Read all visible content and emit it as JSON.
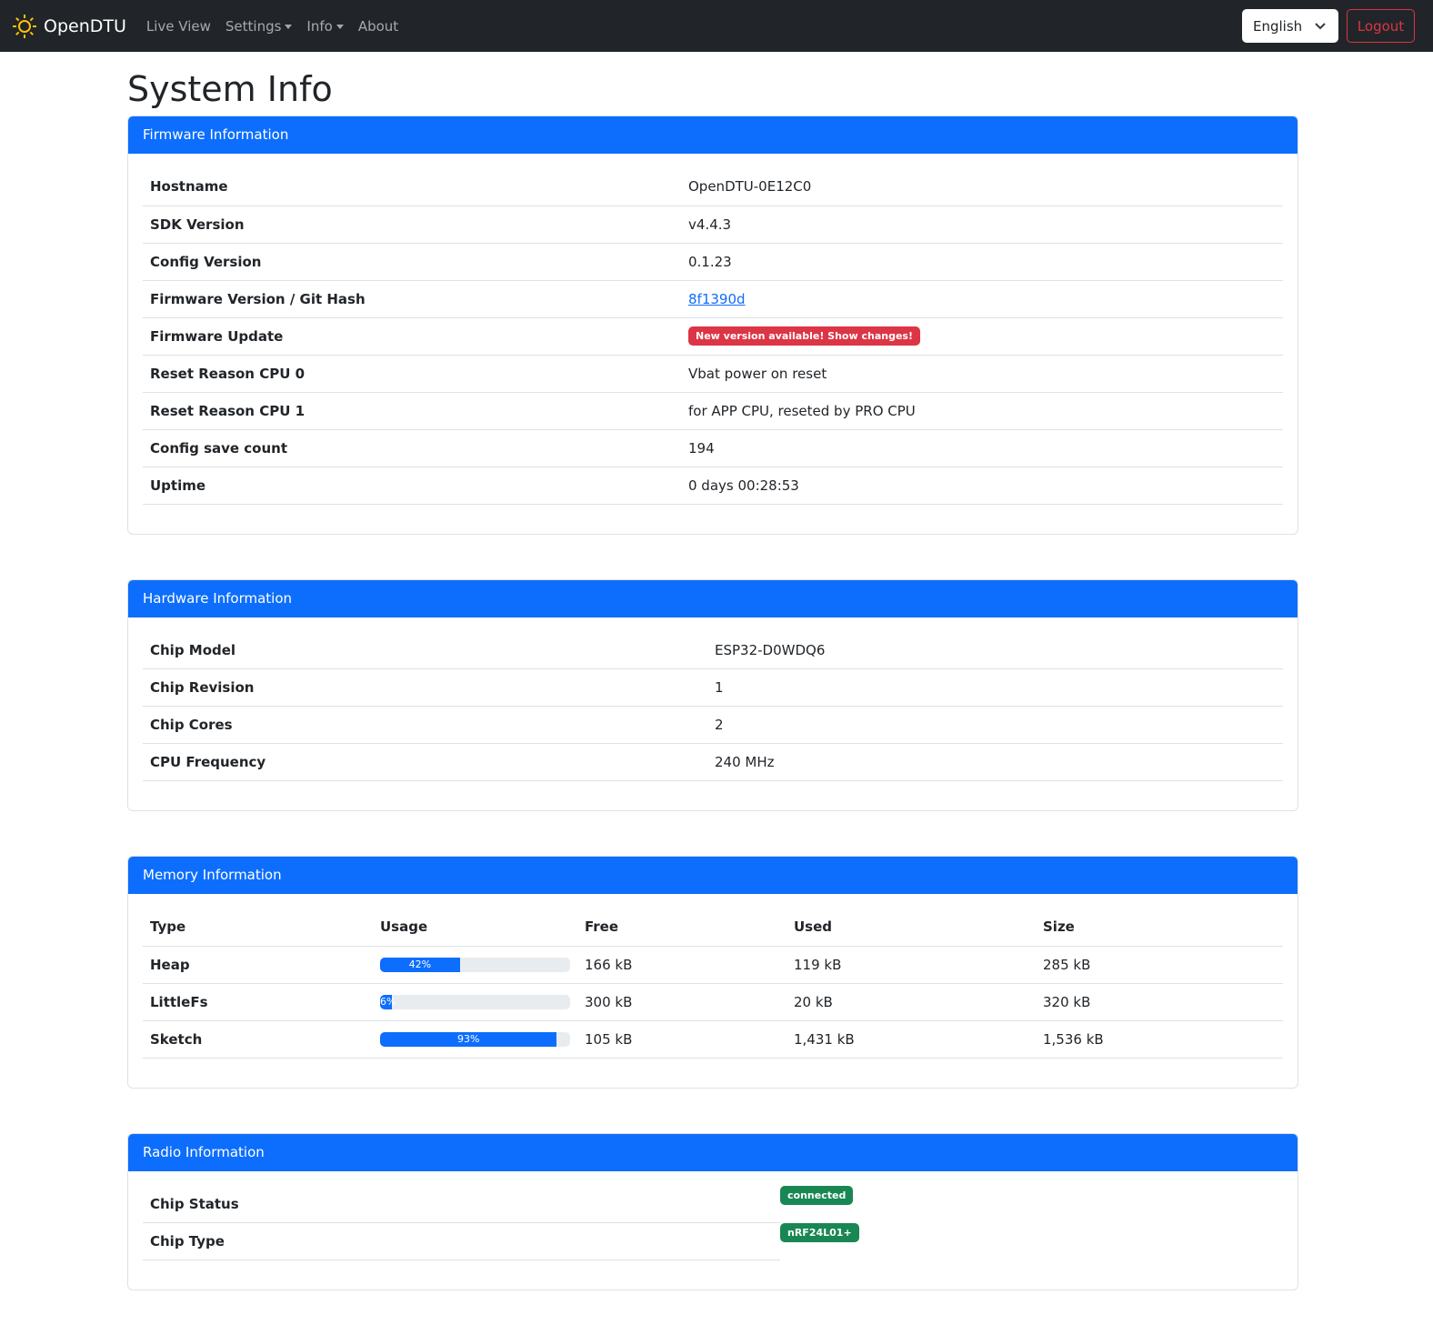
{
  "nav": {
    "brand": "OpenDTU",
    "items": [
      "Live View",
      "Settings",
      "Info",
      "About"
    ],
    "language": "English",
    "logout": "Logout"
  },
  "page_title": "System Info",
  "firmware": {
    "title": "Firmware Information",
    "rows": [
      {
        "label": "Hostname",
        "value": "OpenDTU-0E12C0"
      },
      {
        "label": "SDK Version",
        "value": "v4.4.3"
      },
      {
        "label": "Config Version",
        "value": "0.1.23"
      },
      {
        "label": "Firmware Version / Git Hash",
        "value": "8f1390d"
      },
      {
        "label": "Firmware Update",
        "value": "New version available! Show changes!"
      },
      {
        "label": "Reset Reason CPU 0",
        "value": "Vbat power on reset"
      },
      {
        "label": "Reset Reason CPU 1",
        "value": "for APP CPU, reseted by PRO CPU"
      },
      {
        "label": "Config save count",
        "value": "194"
      },
      {
        "label": "Uptime",
        "value": "0 days 00:28:53"
      }
    ]
  },
  "hardware": {
    "title": "Hardware Information",
    "rows": [
      {
        "label": "Chip Model",
        "value": "ESP32-D0WDQ6"
      },
      {
        "label": "Chip Revision",
        "value": "1"
      },
      {
        "label": "Chip Cores",
        "value": "2"
      },
      {
        "label": "CPU Frequency",
        "value": "240 MHz"
      }
    ]
  },
  "memory": {
    "title": "Memory Information",
    "headers": [
      "Type",
      "Usage",
      "Free",
      "Used",
      "Size"
    ],
    "rows": [
      {
        "type": "Heap",
        "usage": 42,
        "usage_label": "42%",
        "free": "166 kB",
        "used": "119 kB",
        "size": "285 kB"
      },
      {
        "type": "LittleFs",
        "usage": 6,
        "usage_label": "6%",
        "free": "300 kB",
        "used": "20 kB",
        "size": "320 kB"
      },
      {
        "type": "Sketch",
        "usage": 93,
        "usage_label": "93%",
        "free": "105 kB",
        "used": "1,431 kB",
        "size": "1,536 kB"
      }
    ]
  },
  "radio": {
    "title": "Radio Information",
    "rows": [
      {
        "label": "Chip Status",
        "value": "connected"
      },
      {
        "label": "Chip Type",
        "value": "nRF24L01+"
      }
    ]
  },
  "colors": {
    "primary": "#0d6efd",
    "danger": "#dc3545",
    "success": "#198754",
    "navbar": "#212529"
  }
}
